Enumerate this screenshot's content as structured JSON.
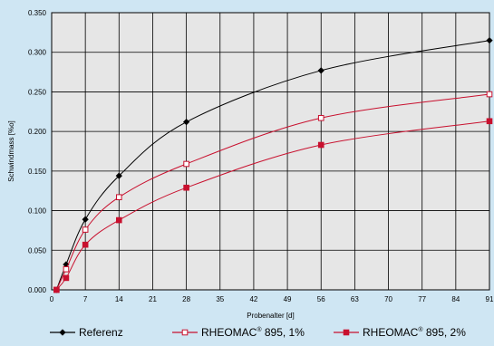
{
  "chart_data": {
    "type": "line",
    "title": "",
    "xlabel": "Probenalter [d]",
    "ylabel": "Schwindmass [%o]",
    "xlim": [
      0,
      91
    ],
    "ylim": [
      0,
      0.35
    ],
    "xticks": [
      0,
      7,
      14,
      21,
      28,
      35,
      42,
      49,
      56,
      63,
      70,
      77,
      84,
      91
    ],
    "yticks": [
      0.0,
      0.05,
      0.1,
      0.15,
      0.2,
      0.25,
      0.3,
      0.35
    ],
    "ytick_labels": [
      "0.000",
      "0.050",
      "0.100",
      "0.150",
      "0.200",
      "0.250",
      "0.300",
      "0.350"
    ],
    "grid": true,
    "legend_placement": "bottom",
    "series": [
      {
        "name": "Referenz",
        "color": "#000000",
        "marker": "diamond-filled",
        "x": [
          1,
          3,
          7,
          14,
          28,
          56,
          91
        ],
        "y": [
          0.0,
          0.032,
          0.089,
          0.144,
          0.212,
          0.277,
          0.315
        ]
      },
      {
        "name": "RHEOMAC® 895, 1%",
        "legend_parts": [
          "RHEOMAC",
          "®",
          " 895, 1%"
        ],
        "color": "#c8102e",
        "marker": "square-open",
        "x": [
          1,
          3,
          7,
          14,
          28,
          56,
          91
        ],
        "y": [
          0.0,
          0.026,
          0.076,
          0.117,
          0.159,
          0.217,
          0.247
        ]
      },
      {
        "name": "RHEOMAC® 895, 2%",
        "legend_parts": [
          "RHEOMAC",
          "®",
          " 895, 2%"
        ],
        "color": "#c8102e",
        "marker": "square-filled",
        "x": [
          1,
          3,
          7,
          14,
          28,
          56,
          91
        ],
        "y": [
          0.0,
          0.015,
          0.057,
          0.088,
          0.129,
          0.183,
          0.213
        ]
      }
    ]
  },
  "colors": {
    "background": "#cfe6f3",
    "plot_area": "#e6e6e6",
    "grid": "#000000"
  }
}
